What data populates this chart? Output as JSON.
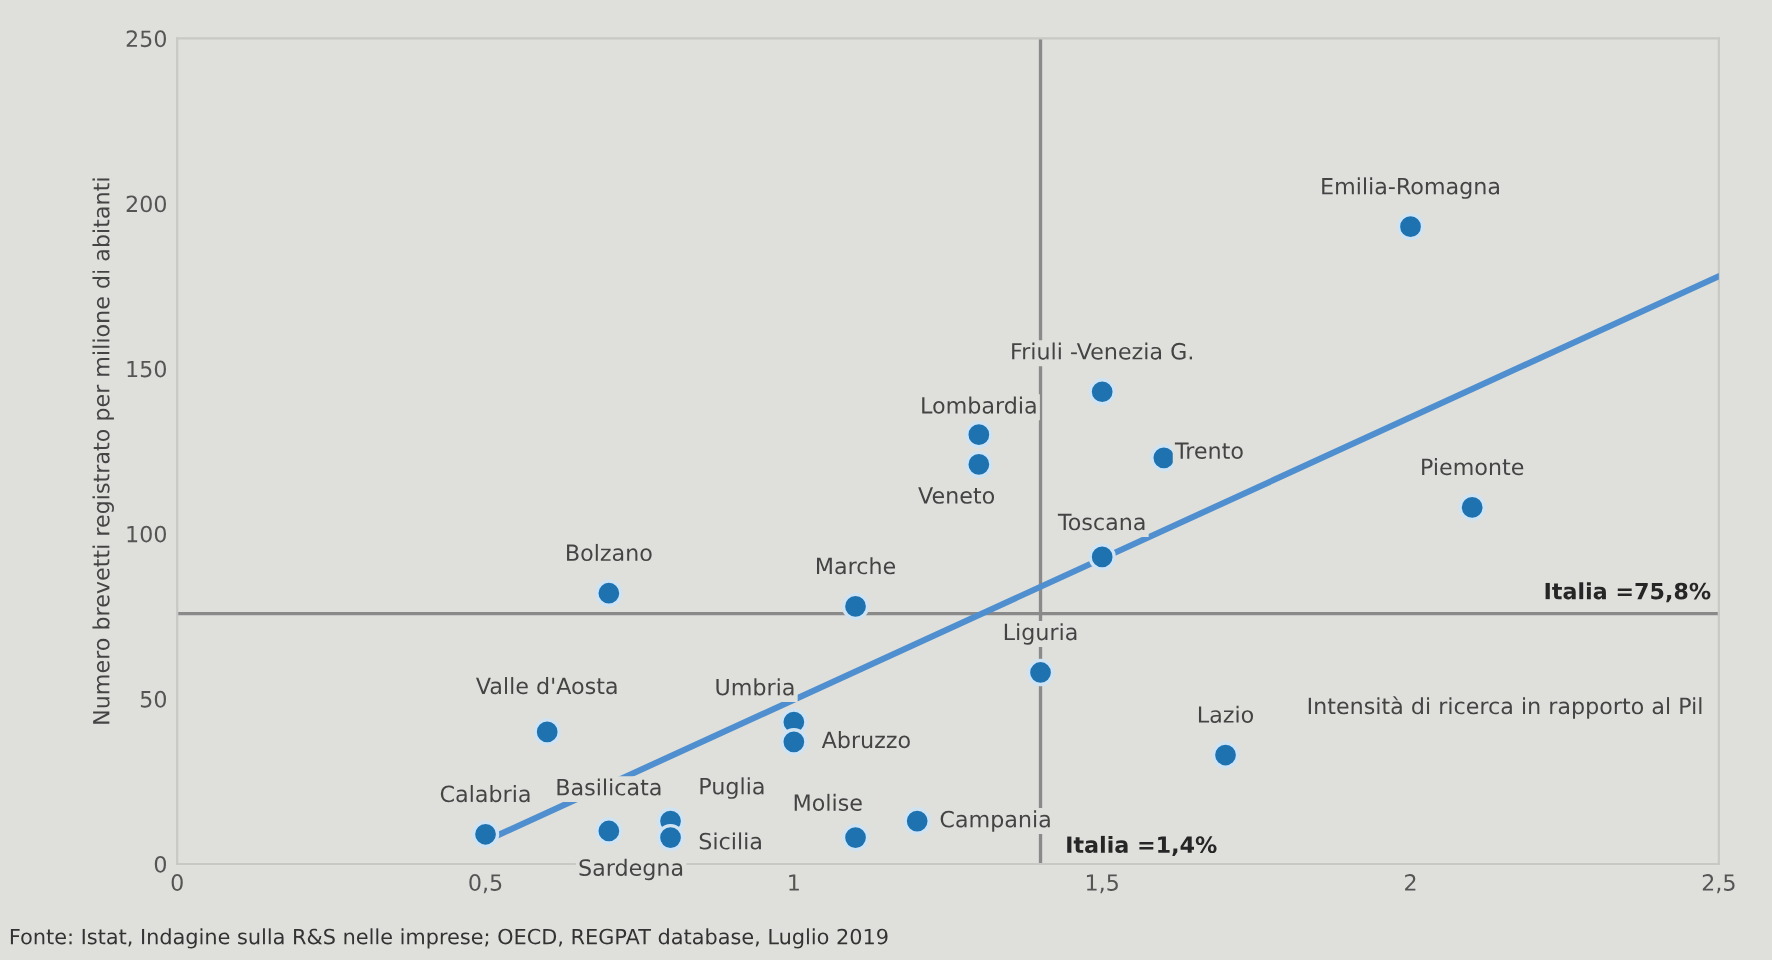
{
  "chart_data": {
    "type": "scatter",
    "xlabel": "Intensità di ricerca in rapporto al Pil",
    "ylabel": "Numero brevetti registrato per milione di abitanti",
    "xlim": [
      0,
      2.5
    ],
    "ylim": [
      0,
      250
    ],
    "xticks": [
      {
        "value": 0,
        "label": "0"
      },
      {
        "value": 0.5,
        "label": "0,5"
      },
      {
        "value": 1,
        "label": "1"
      },
      {
        "value": 1.5,
        "label": "1,5"
      },
      {
        "value": 2,
        "label": "2"
      },
      {
        "value": 2.5,
        "label": "2,5"
      }
    ],
    "yticks": [
      0,
      50,
      100,
      150,
      200,
      250
    ],
    "grid": false,
    "legend": false,
    "series": [
      {
        "marker": "circle",
        "color": "#1f72b0",
        "x": [
          2.0,
          1.5,
          1.6,
          1.3,
          1.3,
          2.1,
          1.5,
          0.7,
          1.1,
          1.4,
          0.6,
          1.0,
          1.0,
          1.7,
          0.5,
          0.7,
          0.8,
          0.8,
          0.7,
          1.1,
          1.2
        ],
        "values": [
          193,
          143,
          123,
          130,
          121,
          108,
          93,
          82,
          78,
          58,
          40,
          43,
          37,
          33,
          9,
          null,
          13,
          8,
          10,
          8,
          13
        ]
      },
      {
        "type": "line",
        "color": "#4f8fcf",
        "x": [
          0.5,
          2.5
        ],
        "values": [
          7,
          178
        ]
      }
    ],
    "ref_lines": [
      {
        "axis": "y",
        "value": 75.8,
        "label": "Italia =75,8%",
        "color": "#8a8a8a"
      },
      {
        "axis": "x",
        "value": 1.4,
        "label": "Italia =1,4%",
        "color": "#8a8a8a"
      }
    ],
    "annotations": [
      {
        "text": "Emilia-Romagna",
        "x": 2.0,
        "y": 193
      },
      {
        "text": "Friuli -Venezia G.",
        "x": 1.5,
        "y": 143
      },
      {
        "text": "Trento",
        "x": 1.6,
        "y": 123
      },
      {
        "text": "Lombardia",
        "x": 1.3,
        "y": 130
      },
      {
        "text": "Veneto",
        "x": 1.3,
        "y": 121
      },
      {
        "text": "Piemonte",
        "x": 2.1,
        "y": 108
      },
      {
        "text": "Toscana",
        "x": 1.5,
        "y": 93
      },
      {
        "text": "Bolzano",
        "x": 0.7,
        "y": 82
      },
      {
        "text": "Marche",
        "x": 1.1,
        "y": 78
      },
      {
        "text": "Liguria",
        "x": 1.4,
        "y": 58
      },
      {
        "text": "Valle d'Aosta",
        "x": 0.6,
        "y": 40
      },
      {
        "text": "Umbria",
        "x": 1.0,
        "y": 43
      },
      {
        "text": "Abruzzo",
        "x": 1.0,
        "y": 37
      },
      {
        "text": "Lazio",
        "x": 1.7,
        "y": 33
      },
      {
        "text": "Calabria",
        "x": 0.5,
        "y": 9
      },
      {
        "text": "Basilicata",
        "x": 0.7,
        "y": 11
      },
      {
        "text": "Puglia",
        "x": 0.8,
        "y": 13
      },
      {
        "text": "Sicilia",
        "x": 0.8,
        "y": 8
      },
      {
        "text": "Sardegna",
        "x": 0.7,
        "y": 10
      },
      {
        "text": "Molise",
        "x": 1.1,
        "y": 8
      },
      {
        "text": "Campania",
        "x": 1.2,
        "y": 13
      },
      "Fonte: Istat, Indagine sulla R&S nelle imprese; OECD, REGPAT database, Luglio 2019"
    ]
  }
}
